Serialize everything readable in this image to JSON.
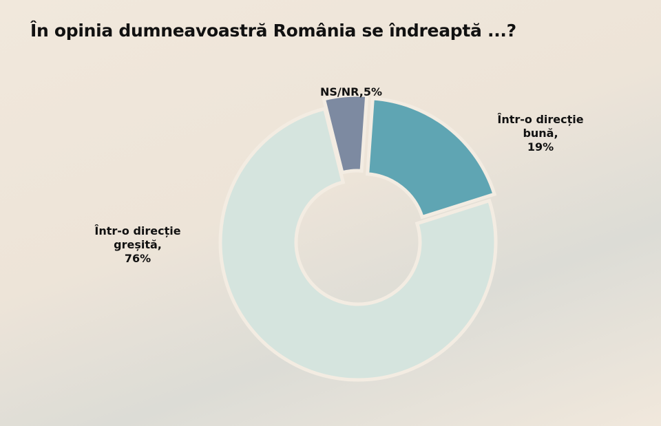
{
  "chart_data": {
    "type": "donut",
    "title": "În opinia dumneavoastră România se îndreaptă ...?",
    "categories": [
      "NS/NR,",
      "Într-o direcție bună,",
      "Într-o direcție greșită,"
    ],
    "values": [
      5,
      19,
      76
    ],
    "value_labels": [
      "5%",
      "19%",
      "76%"
    ],
    "colors": [
      "#7d8aa1",
      "#5fa5b3",
      "#d5e4de"
    ]
  }
}
